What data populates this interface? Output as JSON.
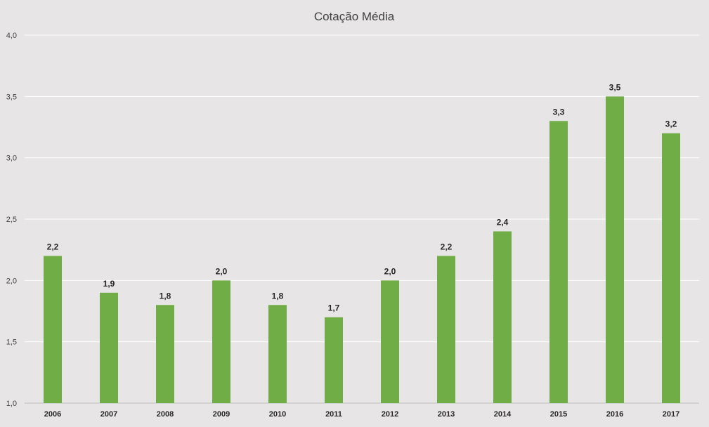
{
  "chart_data": {
    "type": "bar",
    "title": "Cotação Média",
    "xlabel": "",
    "ylabel": "",
    "categories": [
      "2006",
      "2007",
      "2008",
      "2009",
      "2010",
      "2011",
      "2012",
      "2013",
      "2014",
      "2015",
      "2016",
      "2017"
    ],
    "values": [
      2.2,
      1.9,
      1.8,
      2.0,
      1.8,
      1.7,
      2.0,
      2.2,
      2.4,
      3.3,
      3.5,
      3.2
    ],
    "data_labels": [
      "2,2",
      "1,9",
      "1,8",
      "2,0",
      "1,8",
      "1,7",
      "2,0",
      "2,2",
      "2,4",
      "3,3",
      "3,5",
      "3,2"
    ],
    "ylim": [
      1.0,
      4.0
    ],
    "y_ticks": [
      {
        "value": 1.0,
        "label": "1,0"
      },
      {
        "value": 1.5,
        "label": "1,5"
      },
      {
        "value": 2.0,
        "label": "2,0"
      },
      {
        "value": 2.5,
        "label": "2,5"
      },
      {
        "value": 3.0,
        "label": "3,0"
      },
      {
        "value": 3.5,
        "label": "3,5"
      },
      {
        "value": 4.0,
        "label": "4,0"
      }
    ],
    "grid": true,
    "legend": "none",
    "colors": {
      "bar": "#70ad47",
      "background": "#e7e5e6",
      "gridline": "#ffffff"
    }
  }
}
